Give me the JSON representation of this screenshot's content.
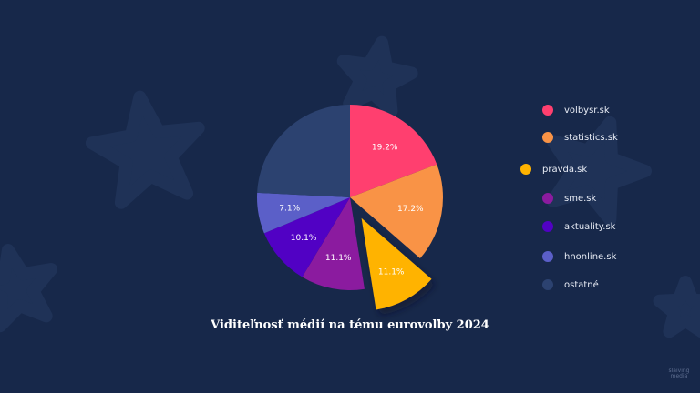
{
  "chart_data": {
    "type": "pie",
    "title": "Viditeľnosť médií na tému eurovoľby 2024",
    "slices": [
      {
        "name": "volbysr.sk",
        "value": 19.2,
        "label": "19.2%",
        "color": "#ff3f6f",
        "exploded": false
      },
      {
        "name": "statistics.sk",
        "value": 17.2,
        "label": "17.2%",
        "color": "#f99346",
        "exploded": false
      },
      {
        "name": "pravda.sk",
        "value": 11.1,
        "label": "11.1%",
        "color": "#ffb300",
        "exploded": true
      },
      {
        "name": "sme.sk",
        "value": 11.1,
        "label": "11.1%",
        "color": "#8b1b9f",
        "exploded": false
      },
      {
        "name": "aktuality.sk",
        "value": 10.1,
        "label": "10.1%",
        "color": "#5101c4",
        "exploded": false
      },
      {
        "name": "hnonline.sk",
        "value": 7.1,
        "label": "7.1%",
        "color": "#5b5fc8",
        "exploded": false
      },
      {
        "name": "ostatné",
        "value": 24.2,
        "label": "",
        "color": "#2c4270",
        "exploded": false
      }
    ],
    "legend_position": "right"
  },
  "brand": {
    "line1": "slaiving",
    "line2": "media"
  }
}
